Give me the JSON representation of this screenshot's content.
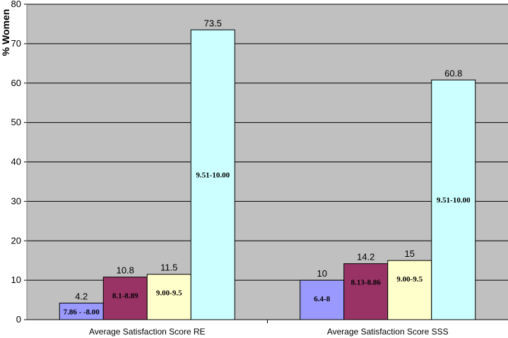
{
  "chart_data": {
    "type": "bar",
    "ylabel": "% Women",
    "ylim": [
      0,
      80
    ],
    "yticks": [
      "0",
      "10",
      "20",
      "30",
      "40",
      "50",
      "60",
      "70",
      "80"
    ],
    "grid": true,
    "plot_background": "#c0c0c0",
    "colors": [
      "#9999ff",
      "#993366",
      "#ffffcc",
      "#ccffff"
    ],
    "groups": [
      {
        "category": "Average Satisfaction Score RE",
        "bars": [
          {
            "label": "7.86 - -8.00",
            "value": 4.2,
            "value_text": "4.2"
          },
          {
            "label": "8.1-8.89",
            "value": 10.8,
            "value_text": "10.8"
          },
          {
            "label": "9.00-9.5",
            "value": 11.5,
            "value_text": "11.5"
          },
          {
            "label": "9.51-10.00",
            "value": 73.5,
            "value_text": "73.5"
          }
        ]
      },
      {
        "category": "Average Satisfaction Score SSS",
        "bars": [
          {
            "label": "6.4-8",
            "value": 10,
            "value_text": "10"
          },
          {
            "label": "8.13-8.86",
            "value": 14.2,
            "value_text": "14.2"
          },
          {
            "label": "9.00-9.5",
            "value": 15,
            "value_text": "15"
          },
          {
            "label": "9.51-10.00",
            "value": 60.8,
            "value_text": "60.8"
          }
        ]
      }
    ]
  }
}
